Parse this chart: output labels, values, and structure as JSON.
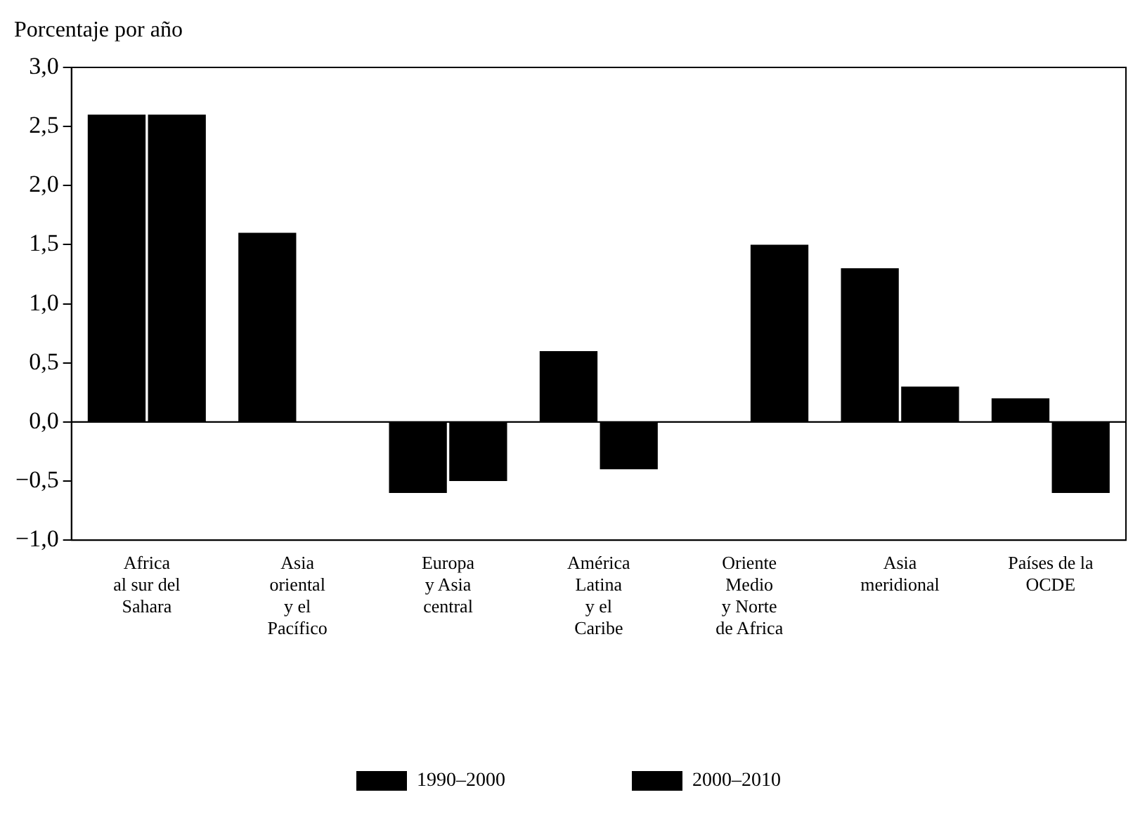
{
  "chart_data": {
    "type": "bar",
    "ylabel": "Porcentaje por año",
    "categories": [
      "Africa\nal sur del\nSahara",
      "Asia\noriental\ny el\nPacífico",
      "Europa\ny Asia\ncentral",
      "América\nLatina\ny el\nCaribe",
      "Oriente\nMedio\ny Norte\nde Africa",
      "Asia\nmeridional",
      "Países de la\nOCDE"
    ],
    "series": [
      {
        "name": "1990–2000",
        "color": "#000000",
        "values": [
          2.6,
          1.6,
          -0.6,
          0.6,
          null,
          1.3,
          0.2
        ]
      },
      {
        "name": "2000–2010",
        "color": "#000000",
        "values": [
          2.6,
          null,
          -0.5,
          -0.4,
          1.5,
          0.3,
          -0.6
        ]
      }
    ],
    "ylim": [
      -1,
      3
    ],
    "yticks": [
      {
        "value": -1,
        "label": "−1,0"
      },
      {
        "value": -0.5,
        "label": "−0,5"
      },
      {
        "value": 0,
        "label": "0,0"
      },
      {
        "value": 0.5,
        "label": "0,5"
      },
      {
        "value": 1,
        "label": "1,0"
      },
      {
        "value": 1.5,
        "label": "1,5"
      },
      {
        "value": 2,
        "label": "2,0"
      },
      {
        "value": 2.5,
        "label": "2,5"
      },
      {
        "value": 3,
        "label": "3,0"
      }
    ],
    "ref_lines": [
      {
        "axis": "y",
        "value": 0,
        "color": "#000000"
      }
    ],
    "grid": false,
    "legend": "bottom"
  }
}
